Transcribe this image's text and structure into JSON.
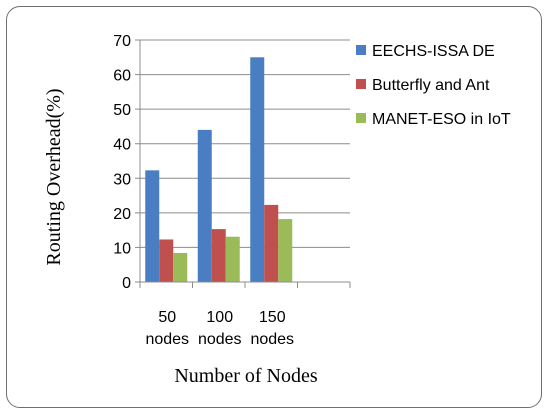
{
  "chart_data": {
    "type": "bar",
    "categories": [
      [
        "50",
        "nodes"
      ],
      [
        "100",
        "nodes"
      ],
      [
        "150",
        "nodes"
      ]
    ],
    "series": [
      {
        "name": "EECHS-ISSA DE",
        "color": "#4a7ec2",
        "values": [
          32.3,
          44,
          65
        ]
      },
      {
        "name": "Butterfly and Ant",
        "color": "#c0504d",
        "values": [
          12.3,
          15.3,
          22.3
        ]
      },
      {
        "name": "MANET-ESO in IoT",
        "color": "#9bbb59",
        "values": [
          8.4,
          13.1,
          18.2
        ]
      }
    ],
    "xlabel": "Number of Nodes",
    "ylabel": "Routing Overhead(%)",
    "ylim": [
      0,
      70
    ],
    "yticks": [
      0,
      10,
      20,
      30,
      40,
      50,
      60,
      70
    ],
    "grid": true,
    "legend_position": "right"
  }
}
